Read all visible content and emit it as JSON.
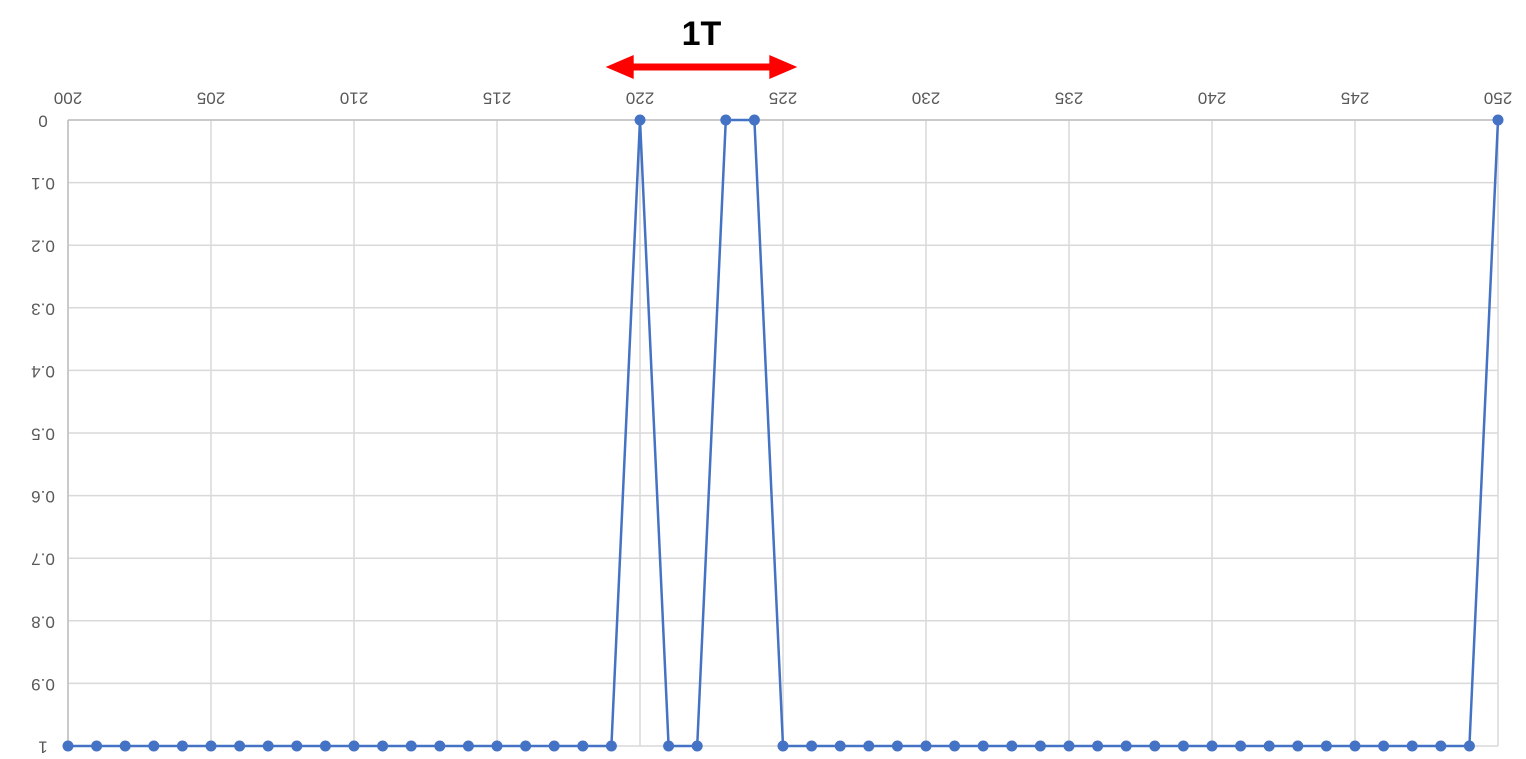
{
  "chart_data": {
    "type": "line",
    "title": "",
    "xlabel": "",
    "ylabel": "",
    "x_axis_position": "top",
    "y_axis_inverted": true,
    "tick_labels_mirrored": true,
    "grid": true,
    "xlim": [
      200,
      250
    ],
    "ylim": [
      0,
      1
    ],
    "x_ticks": [
      200,
      205,
      210,
      215,
      220,
      225,
      230,
      235,
      240,
      245,
      250
    ],
    "x_tick_labels": [
      "200",
      "205",
      "210",
      "215",
      "220",
      "225",
      "230",
      "235",
      "240",
      "245",
      "250"
    ],
    "y_ticks": [
      0,
      0.1,
      0.2,
      0.3,
      0.4,
      0.5,
      0.6,
      0.7,
      0.8,
      0.9,
      1
    ],
    "y_tick_labels": [
      "0",
      "0.1",
      "0.2",
      "0.3",
      "0.4",
      "0.5",
      "0.6",
      "0.7",
      "0.8",
      "0.9",
      "1"
    ],
    "series": [
      {
        "color": "#4472C4",
        "x": [
          200,
          201,
          202,
          203,
          204,
          205,
          206,
          207,
          208,
          209,
          210,
          211,
          212,
          213,
          214,
          215,
          216,
          217,
          218,
          219,
          220,
          221,
          222,
          223,
          224,
          225,
          226,
          227,
          228,
          229,
          230,
          231,
          232,
          233,
          234,
          235,
          236,
          237,
          238,
          239,
          240,
          241,
          242,
          243,
          244,
          245,
          246,
          247,
          248,
          249,
          250
        ],
        "y": [
          1,
          1,
          1,
          1,
          1,
          1,
          1,
          1,
          1,
          1,
          1,
          1,
          1,
          1,
          1,
          1,
          1,
          1,
          1,
          1,
          0,
          1,
          1,
          0,
          0,
          1,
          1,
          1,
          1,
          1,
          1,
          1,
          1,
          1,
          1,
          1,
          1,
          1,
          1,
          1,
          1,
          1,
          1,
          1,
          1,
          1,
          1,
          1,
          1,
          1,
          0
        ]
      }
    ],
    "annotation": {
      "text": "1T",
      "arrow_color": "#FF0000",
      "x_from": 218.8,
      "x_to": 225.5
    }
  }
}
